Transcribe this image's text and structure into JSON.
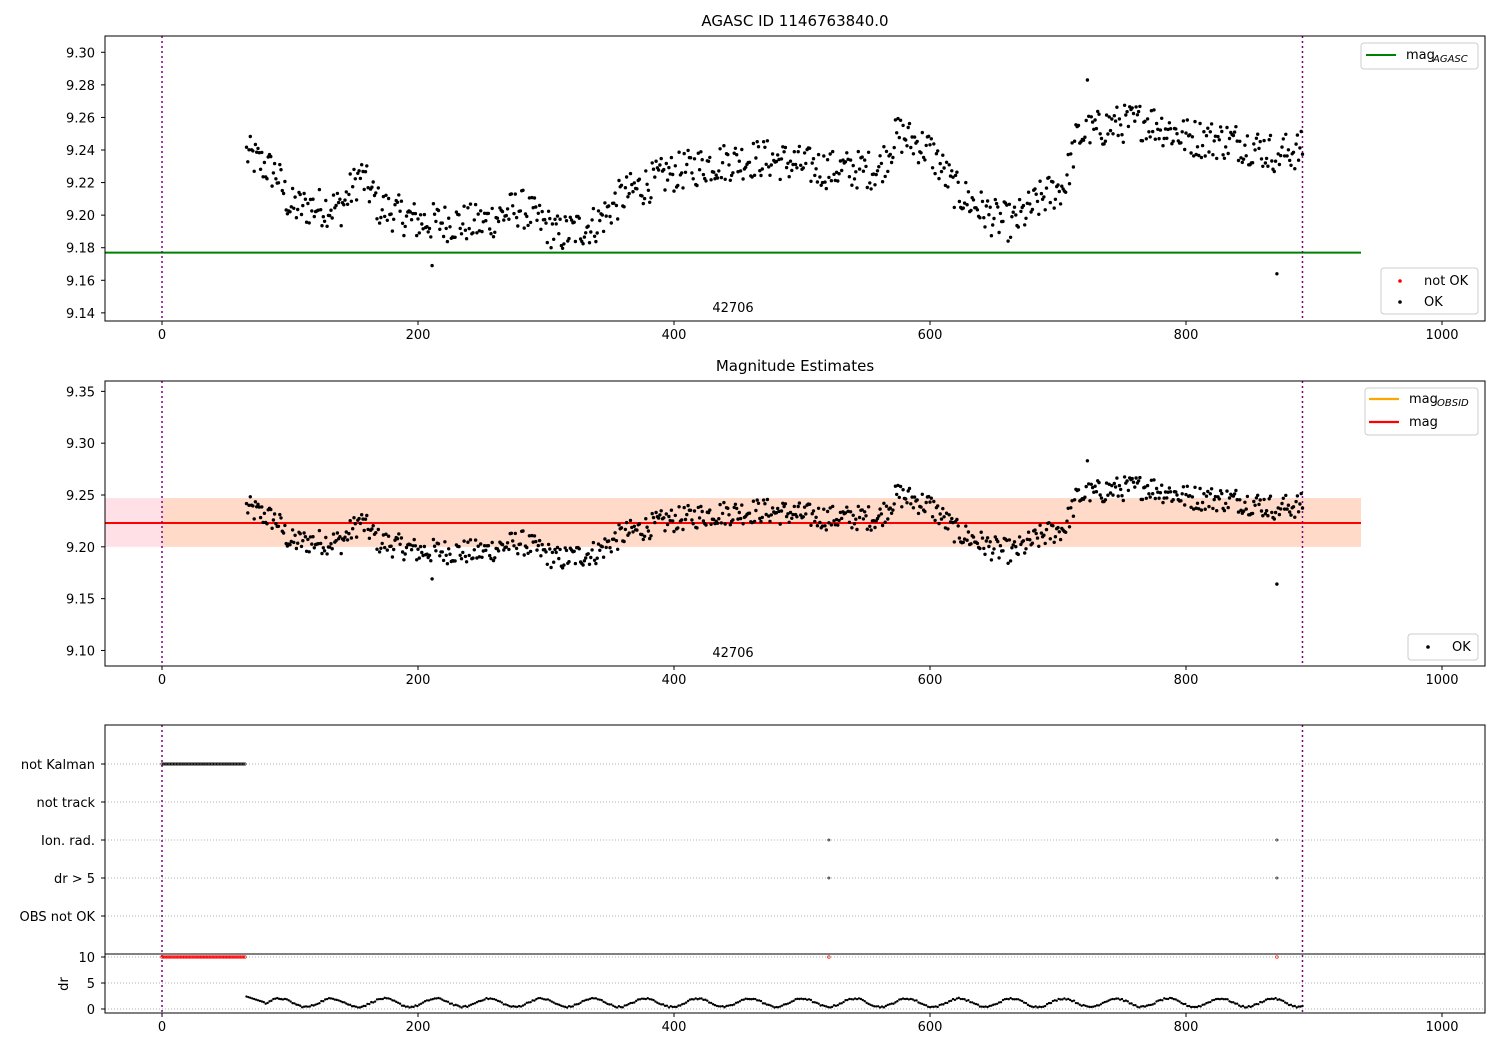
{
  "figure": {
    "background": "#ffffff"
  },
  "colors": {
    "ok_points": "#000000",
    "not_ok_points": "#ff0000",
    "mag_agasc_line": "#008000",
    "mag_obsid_line": "#ffa500",
    "mag_line": "#ff0000",
    "obsid_band": "#ffdac8",
    "mag_band": "#ffe0e6",
    "tstart_line": "#800080",
    "grid": "#b0b0b0"
  },
  "chart_data": [
    {
      "panel": "top",
      "type": "scatter",
      "title": "AGASC ID 1146763840.0",
      "xlabel": "",
      "ylabel": "",
      "xlim": [
        -45,
        1030
      ],
      "ylim": [
        9.135,
        9.31
      ],
      "xticks": [
        0,
        200,
        400,
        600,
        800,
        1000
      ],
      "yticks": [
        "9.14",
        "9.16",
        "9.18",
        "9.20",
        "9.22",
        "9.24",
        "9.26",
        "9.28",
        "9.30"
      ],
      "obsid_label": "42706",
      "mag_agasc": 9.177,
      "vertical_lines": [
        0,
        891
      ],
      "series": [
        {
          "name": "not OK",
          "color": "#ff0000",
          "points": []
        },
        {
          "name": "OK",
          "color": "#000000",
          "note": "same dense time series rendered from shared trend model",
          "trend": "shared"
        }
      ],
      "legend_top_right": [
        "mag_AGASC"
      ],
      "legend_bottom_right": [
        "not OK",
        "OK"
      ]
    },
    {
      "panel": "middle",
      "type": "scatter",
      "title": "Magnitude Estimates",
      "xlabel": "",
      "ylabel": "",
      "xlim": [
        -45,
        1030
      ],
      "ylim": [
        9.085,
        9.36
      ],
      "xticks": [
        0,
        200,
        400,
        600,
        800,
        1000
      ],
      "yticks": [
        "9.10",
        "9.15",
        "9.20",
        "9.25",
        "9.30",
        "9.35"
      ],
      "obsid_label": "42706",
      "mag_obsid": 9.223,
      "mag": 9.223,
      "mag_band": [
        9.2,
        9.247
      ],
      "vertical_lines": [
        0,
        891
      ],
      "legend_top_right": [
        "mag_OBSID",
        "mag"
      ],
      "legend_bottom_right": [
        "OK"
      ]
    },
    {
      "panel": "bottom",
      "type": "flags",
      "xlim": [
        -45,
        1030
      ],
      "xticks": [
        0,
        200,
        400,
        600,
        800,
        1000
      ],
      "categories": [
        "not Kalman",
        "not track",
        "Ion. rad.",
        "dr > 5",
        "OBS not OK"
      ],
      "flag_points": {
        "not Kalman": {
          "range": [
            0,
            65
          ]
        },
        "not track": {
          "range": []
        },
        "Ion. rad.": {
          "x": [
            521,
            871
          ]
        },
        "dr > 5": {
          "x": [
            521,
            871
          ]
        },
        "OBS not OK": {
          "range": []
        }
      },
      "dr_ylabel": "dr",
      "dr_yticks": [
        "0",
        "5",
        "10"
      ],
      "dr_clipped_x": {
        "range": [
          0,
          65
        ],
        "extra": [
          521,
          871
        ]
      },
      "vertical_lines": [
        0,
        891
      ]
    }
  ],
  "legend": {
    "mag_agasc": {
      "main": "mag",
      "sub": "AGASC"
    },
    "mag_obsid": {
      "main": "mag",
      "sub": "OBSID"
    },
    "mag": "mag",
    "not_ok": "not OK",
    "ok": "OK"
  }
}
